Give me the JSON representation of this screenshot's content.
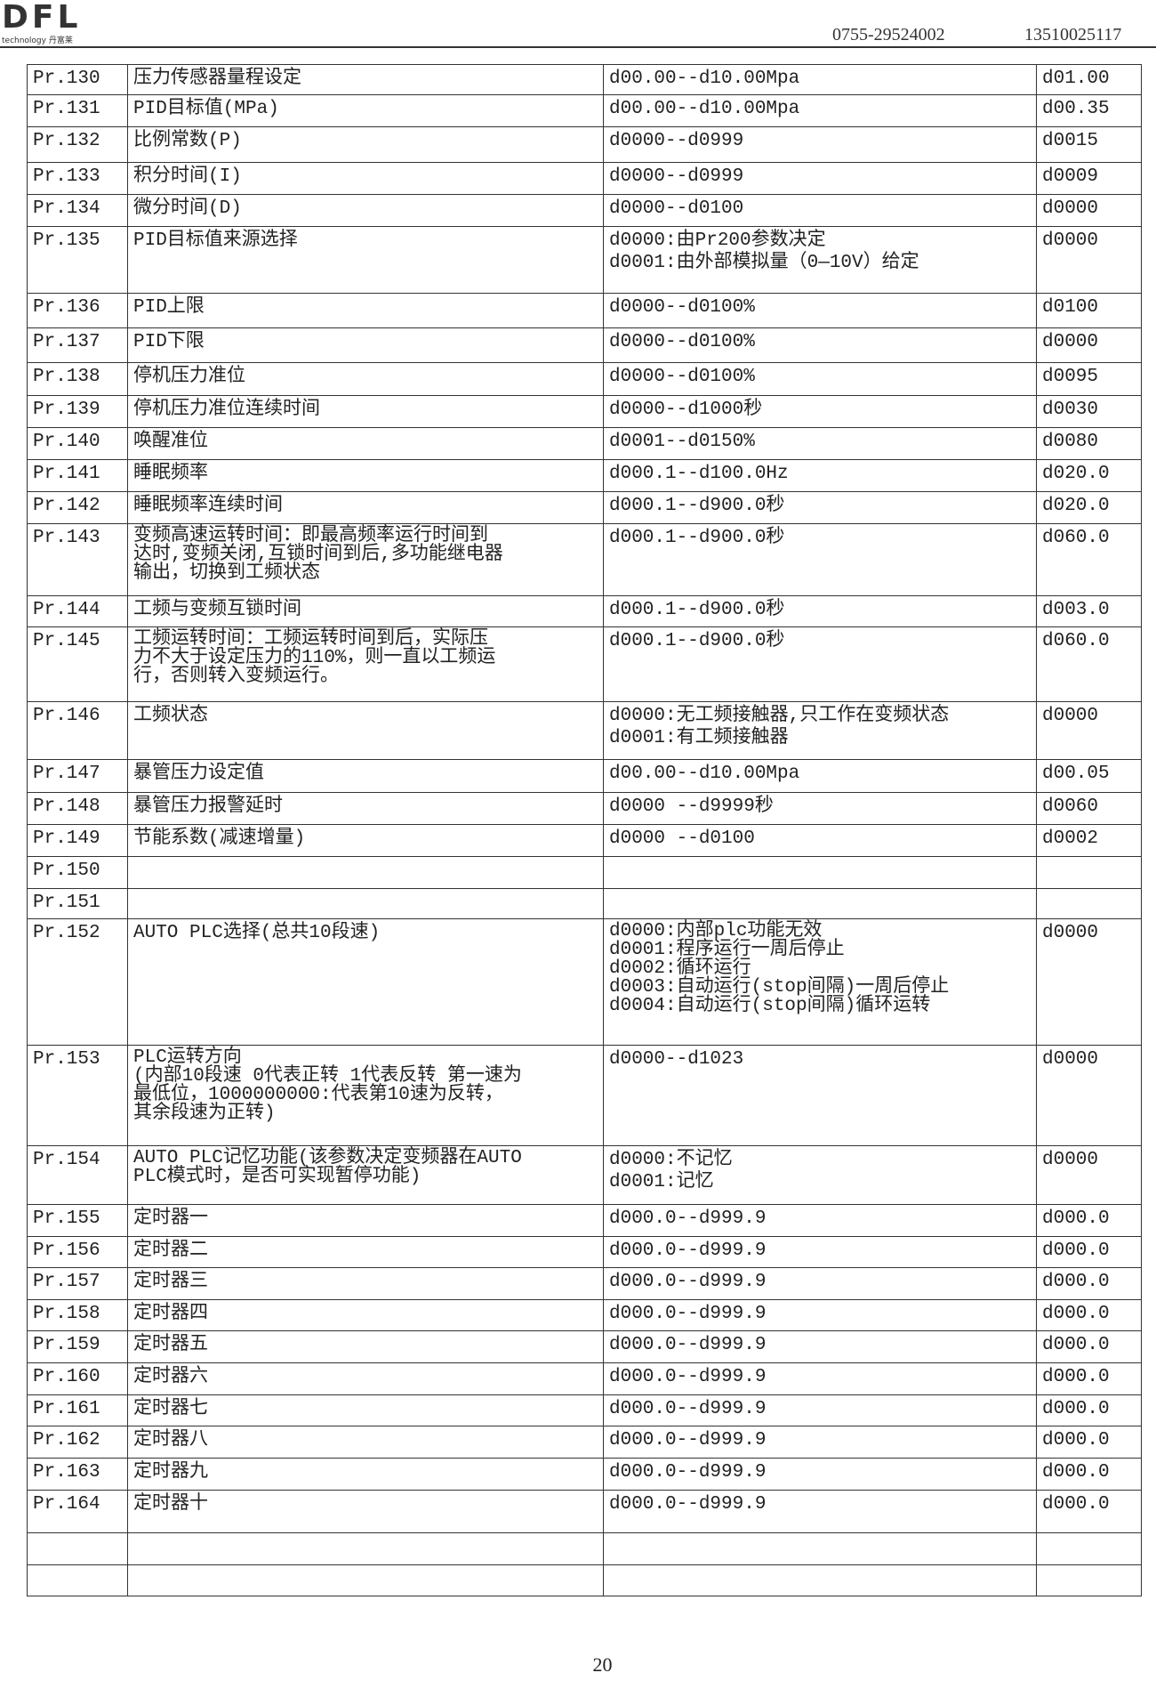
{
  "header": {
    "logo": "DFL",
    "logo_sub": "technology 丹富莱",
    "phone1": "0755-29524002",
    "phone2": "13510025117"
  },
  "rows": [
    {
      "code": "Pr.130",
      "name": "压力传感器量程设定",
      "range": "d00.00--d10.00Mpa",
      "default": "d01.00"
    },
    {
      "code": "Pr.131",
      "name": "PID目标值(MPa)",
      "range": "d00.00--d10.00Mpa",
      "default": "d00.35"
    },
    {
      "code": "Pr.132",
      "name": "比例常数(P)",
      "range": "d0000--d0999",
      "default": "d0015"
    },
    {
      "code": "Pr.133",
      "name": "积分时间(I)",
      "range": "d0000--d0999",
      "default": "d0009"
    },
    {
      "code": "Pr.134",
      "name": "微分时间(D)",
      "range": "d0000--d0100",
      "default": "d0000"
    },
    {
      "code": "Pr.135",
      "name": "PID目标值来源选择",
      "range": "d0000:由Pr200参数决定\nd0001:由外部模拟量（0—10V）给定",
      "default": "d0000"
    },
    {
      "code": "Pr.136",
      "name": "PID上限",
      "range": "d0000--d0100%",
      "default": "d0100"
    },
    {
      "code": "Pr.137",
      "name": "PID下限",
      "range": "d0000--d0100%",
      "default": "d0000"
    },
    {
      "code": "Pr.138",
      "name": "停机压力准位",
      "range": "d0000--d0100%",
      "default": "d0095"
    },
    {
      "code": "Pr.139",
      "name": "停机压力准位连续时间",
      "range": "d0000--d1000秒",
      "default": "d0030"
    },
    {
      "code": "Pr.140",
      "name": "唤醒准位",
      "range": "d0001--d0150%",
      "default": "d0080"
    },
    {
      "code": "Pr.141",
      "name": "睡眠频率",
      "range": "d000.1--d100.0Hz",
      "default": "d020.0"
    },
    {
      "code": "Pr.142",
      "name": "睡眠频率连续时间",
      "range": "d000.1--d900.0秒",
      "default": "d020.0"
    },
    {
      "code": "Pr.143",
      "name": "变频高速运转时间：即最高频率运行时间到\n达时,变频关闭,互锁时间到后,多功能继电器\n输出，切换到工频状态",
      "range": "d000.1--d900.0秒",
      "default": "d060.0"
    },
    {
      "code": "Pr.144",
      "name": "工频与变频互锁时间",
      "range": "d000.1--d900.0秒",
      "default": "d003.0"
    },
    {
      "code": "Pr.145",
      "name": "工频运转时间：工频运转时间到后，实际压\n力不大于设定压力的110%，则一直以工频运\n行，否则转入变频运行。",
      "range": "d000.1--d900.0秒",
      "default": "d060.0"
    },
    {
      "code": "Pr.146",
      "name": "工频状态",
      "range": "d0000:无工频接触器,只工作在变频状态\nd0001:有工频接触器",
      "default": "d0000"
    },
    {
      "code": "Pr.147",
      "name": "暴管压力设定值",
      "range": "d00.00--d10.00Mpa",
      "default": "d00.05"
    },
    {
      "code": "Pr.148",
      "name": "暴管压力报警延时",
      "range": "d0000 --d9999秒",
      "default": "d0060"
    },
    {
      "code": "Pr.149",
      "name": "节能系数(减速增量)",
      "range": "d0000 --d0100",
      "default": "d0002"
    },
    {
      "code": "Pr.150",
      "name": "",
      "range": "",
      "default": ""
    },
    {
      "code": "Pr.151",
      "name": "",
      "range": "",
      "default": ""
    },
    {
      "code": "Pr.152",
      "name": "AUTO PLC选择(总共10段速)",
      "range": "d0000:内部plc功能无效\nd0001:程序运行一周后停止\nd0002:循环运行\nd0003:自动运行(stop间隔)一周后停止\nd0004:自动运行(stop间隔)循环运转",
      "default": "d0000"
    },
    {
      "code": "Pr.153",
      "name": "PLC运转方向\n(内部10段速 0代表正转 1代表反转 第一速为\n最低位，1000000000:代表第10速为反转，\n其余段速为正转)",
      "range": "d0000--d1023",
      "default": "d0000"
    },
    {
      "code": "Pr.154",
      "name": "AUTO PLC记忆功能(该参数决定变频器在AUTO\nPLC模式时，是否可实现暂停功能)",
      "range": "d0000:不记忆\nd0001:记忆",
      "default": "d0000"
    },
    {
      "code": "Pr.155",
      "name": "定时器一",
      "range": "d000.0--d999.9",
      "default": "d000.0"
    },
    {
      "code": "Pr.156",
      "name": "定时器二",
      "range": "d000.0--d999.9",
      "default": "d000.0"
    },
    {
      "code": "Pr.157",
      "name": "定时器三",
      "range": "d000.0--d999.9",
      "default": "d000.0"
    },
    {
      "code": "Pr.158",
      "name": "定时器四",
      "range": "d000.0--d999.9",
      "default": "d000.0"
    },
    {
      "code": "Pr.159",
      "name": "定时器五",
      "range": "d000.0--d999.9",
      "default": "d000.0"
    },
    {
      "code": "Pr.160",
      "name": "定时器六",
      "range": "d000.0--d999.9",
      "default": "d000.0"
    },
    {
      "code": "Pr.161",
      "name": "定时器七",
      "range": "d000.0--d999.9",
      "default": "d000.0"
    },
    {
      "code": "Pr.162",
      "name": "定时器八",
      "range": "d000.0--d999.9",
      "default": "d000.0"
    },
    {
      "code": "Pr.163",
      "name": "定时器九",
      "range": "d000.0--d999.9",
      "default": "d000.0"
    },
    {
      "code": "Pr.164",
      "name": "定时器十",
      "range": "d000.0--d999.9",
      "default": "d000.0"
    },
    {
      "code": "",
      "name": "",
      "range": "",
      "default": ""
    },
    {
      "code": "",
      "name": "",
      "range": "",
      "default": ""
    }
  ],
  "page_number": "20"
}
